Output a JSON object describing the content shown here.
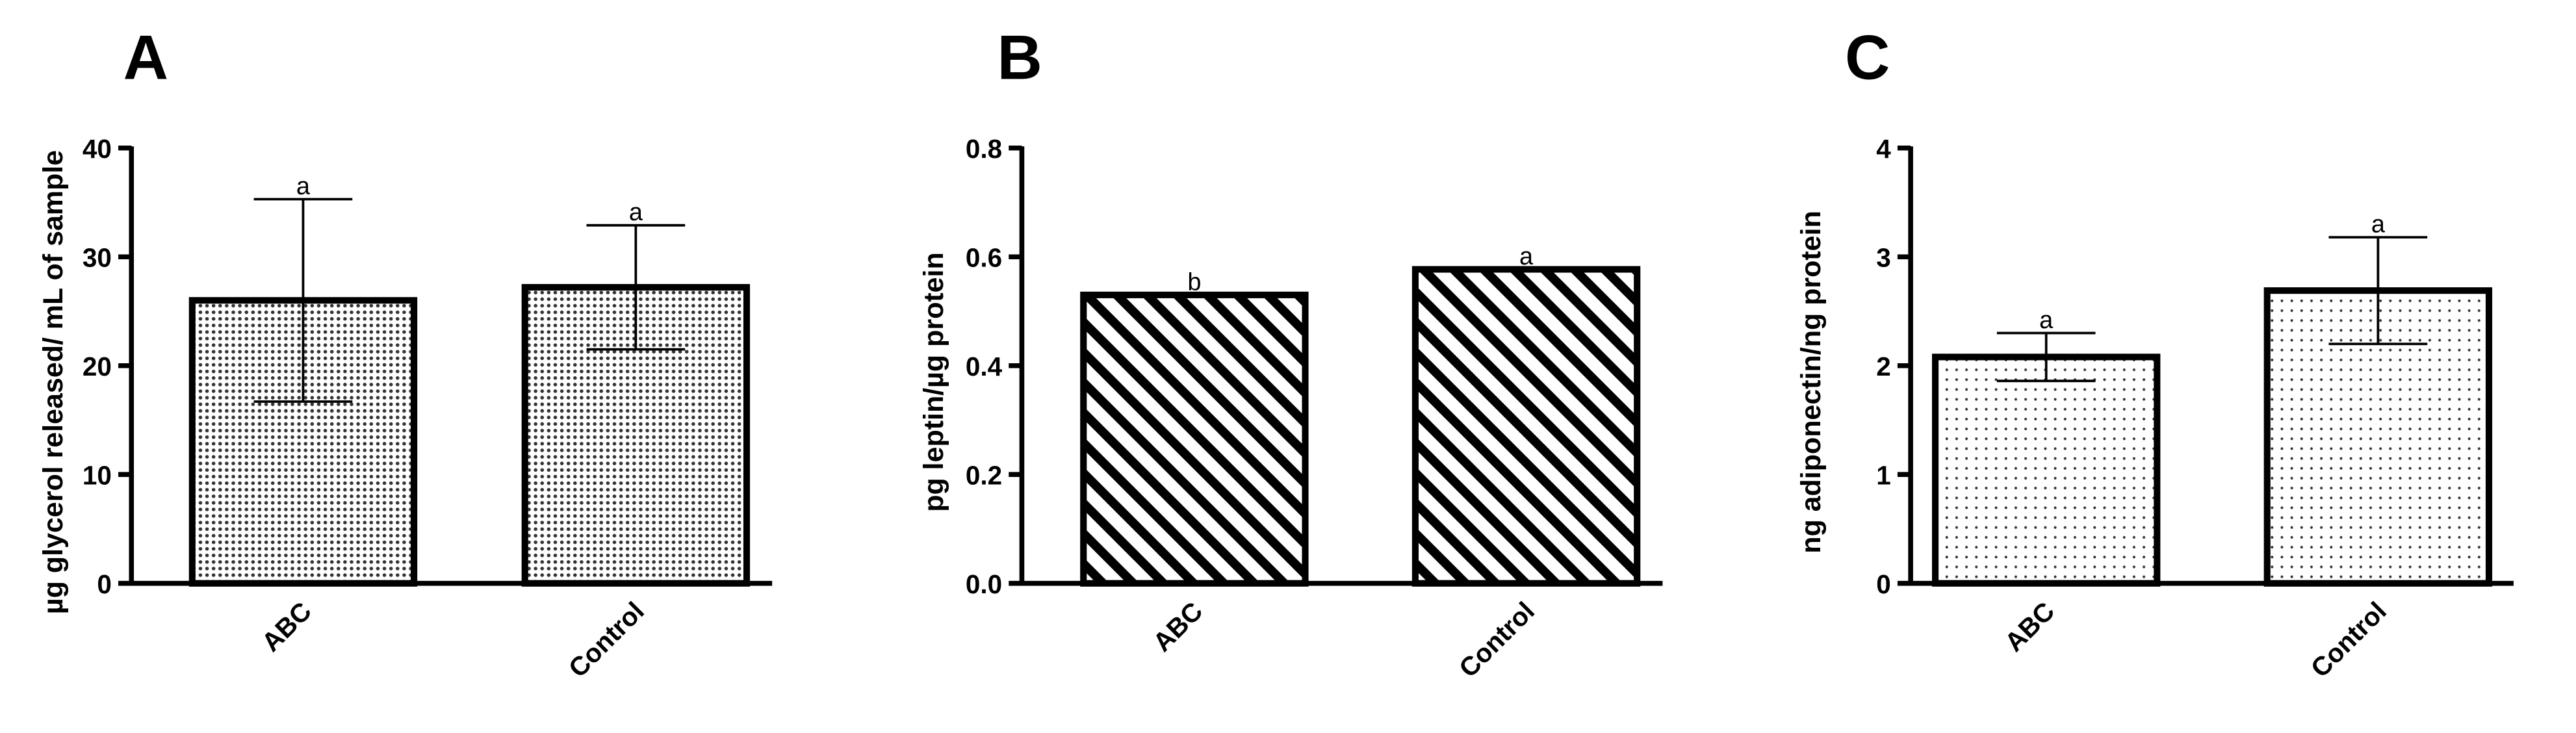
{
  "chart_data": [
    {
      "type": "bar",
      "panel": "A",
      "ylabel": "µg glycerol released/ mL of sample",
      "categories": [
        "ABC",
        "Control"
      ],
      "values": [
        26,
        27.2
      ],
      "errors": [
        9.3,
        5.7
      ],
      "annotations": [
        "a",
        "a"
      ],
      "ylim": [
        0,
        40
      ],
      "yticks": [
        0,
        10,
        20,
        30,
        40
      ],
      "pattern": "dense-dots",
      "color": "#000000"
    },
    {
      "type": "bar",
      "panel": "B",
      "ylabel": "pg leptin/µg protein",
      "categories": [
        "ABC",
        "Control"
      ],
      "values": [
        0.53,
        0.577
      ],
      "annotations": [
        "b",
        "a"
      ],
      "ylim": [
        0,
        0.8
      ],
      "yticks": [
        {
          "value": 0,
          "label": "0.0"
        },
        0.2,
        0.4,
        0.6,
        0.8
      ],
      "pattern": "stripes",
      "color": "#000000"
    },
    {
      "type": "bar",
      "panel": "C",
      "ylabel": "ng adiponectin/ng protein",
      "categories": [
        "ABC",
        "Control"
      ],
      "values": [
        2.08,
        2.69
      ],
      "errors": [
        0.22,
        0.49
      ],
      "annotations": [
        "a",
        "a"
      ],
      "ylim": [
        0,
        4
      ],
      "yticks": [
        0,
        1,
        2,
        3,
        4
      ],
      "pattern": "dots",
      "color": "#000000"
    }
  ]
}
